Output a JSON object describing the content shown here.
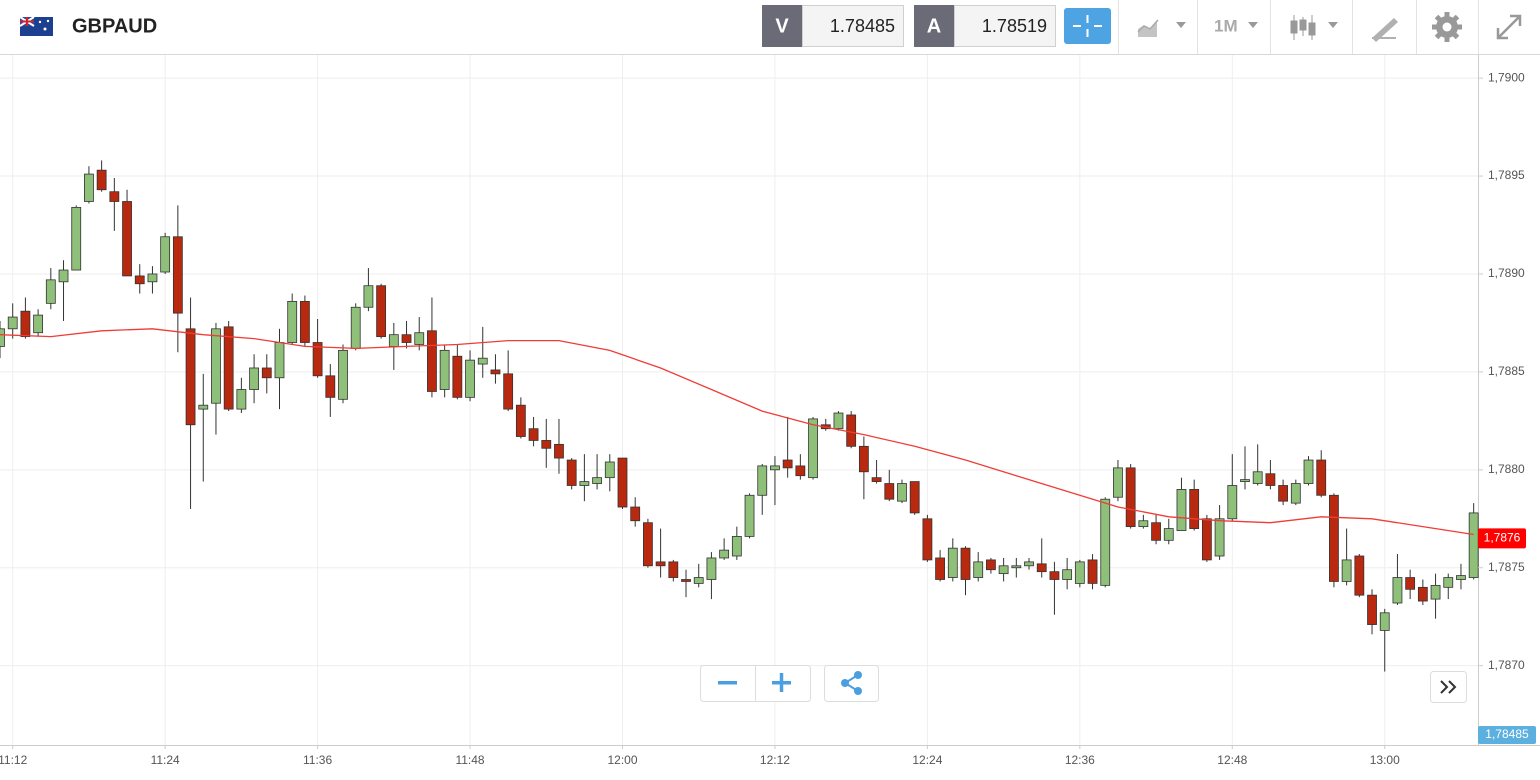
{
  "header": {
    "symbol": "GBPAUD",
    "sell_label": "V",
    "sell_price": "1.78485",
    "buy_label": "A",
    "buy_price": "1.78519",
    "timeframe": "1M"
  },
  "chart_data": {
    "type": "candlestick",
    "x": [
      "11:11",
      "11:12",
      "11:13",
      "11:14",
      "11:15",
      "11:16",
      "11:17",
      "11:18",
      "11:19",
      "11:20",
      "11:21",
      "11:22",
      "11:23",
      "11:24",
      "11:25",
      "11:26",
      "11:27",
      "11:28",
      "11:29",
      "11:30",
      "11:31",
      "11:32",
      "11:33",
      "11:34",
      "11:35",
      "11:36",
      "11:37",
      "11:38",
      "11:39",
      "11:40",
      "11:41",
      "11:42",
      "11:43",
      "11:44",
      "11:45",
      "11:46",
      "11:47",
      "11:48",
      "11:49",
      "11:50",
      "11:51",
      "11:52",
      "11:53",
      "11:54",
      "11:55",
      "11:56",
      "11:57",
      "11:58",
      "11:59",
      "12:00",
      "12:01",
      "12:02",
      "12:03",
      "12:04",
      "12:05",
      "12:06",
      "12:07",
      "12:08",
      "12:09",
      "12:10",
      "12:11",
      "12:12",
      "12:13",
      "12:14",
      "12:15",
      "12:16",
      "12:17",
      "12:18",
      "12:19",
      "12:20",
      "12:21",
      "12:22",
      "12:23",
      "12:24",
      "12:25",
      "12:26",
      "12:27",
      "12:28",
      "12:29",
      "12:30",
      "12:31",
      "12:32",
      "12:33",
      "12:34",
      "12:35",
      "12:36",
      "12:37",
      "12:38",
      "12:39",
      "12:40",
      "12:41",
      "12:42",
      "12:43",
      "12:44",
      "12:45",
      "12:46",
      "12:47",
      "12:48",
      "12:49",
      "12:50",
      "12:51",
      "12:52",
      "12:53",
      "12:54",
      "12:55",
      "12:56",
      "12:57",
      "12:58",
      "12:59",
      "13:00",
      "13:01",
      "13:02",
      "13:03",
      "13:04",
      "13:05",
      "13:06",
      "13:07"
    ],
    "open": [
      1.78863,
      1.78872,
      1.78881,
      1.7887,
      1.78885,
      1.78896,
      1.78902,
      1.78937,
      1.78953,
      1.78942,
      1.78937,
      1.78899,
      1.78896,
      1.78901,
      1.78919,
      1.78872,
      1.78831,
      1.78834,
      1.78873,
      1.78831,
      1.78841,
      1.78852,
      1.78847,
      1.78865,
      1.78886,
      1.78865,
      1.78848,
      1.78836,
      1.78862,
      1.78883,
      1.78894,
      1.78863,
      1.78869,
      1.78864,
      1.78871,
      1.78841,
      1.78858,
      1.78837,
      1.78854,
      1.78851,
      1.78849,
      1.78833,
      1.78821,
      1.78815,
      1.78813,
      1.78805,
      1.78792,
      1.78793,
      1.78796,
      1.78806,
      1.78781,
      1.78773,
      1.78753,
      1.78753,
      1.78744,
      1.78742,
      1.78744,
      1.78755,
      1.78756,
      1.78766,
      1.78787,
      1.788,
      1.78805,
      1.78802,
      1.78796,
      1.78823,
      1.78821,
      1.78828,
      1.78812,
      1.78796,
      1.78793,
      1.78784,
      1.78794,
      1.78775,
      1.78755,
      1.78745,
      1.7876,
      1.78745,
      1.78754,
      1.78747,
      1.7875,
      1.78751,
      1.78752,
      1.78748,
      1.78744,
      1.78742,
      1.78754,
      1.78741,
      1.78786,
      1.78801,
      1.78771,
      1.78773,
      1.78764,
      1.78769,
      1.7879,
      1.78775,
      1.78756,
      1.78775,
      1.78794,
      1.78793,
      1.78798,
      1.78792,
      1.78783,
      1.78793,
      1.78805,
      1.78787,
      1.78743,
      1.78756,
      1.78736,
      1.78718,
      1.78732,
      1.78745,
      1.7874,
      1.78734,
      1.7874,
      1.78744,
      1.78745
    ],
    "high": [
      1.78876,
      1.78885,
      1.78888,
      1.78882,
      1.78903,
      1.78907,
      1.78935,
      1.78955,
      1.78958,
      1.78949,
      1.78943,
      1.78905,
      1.78904,
      1.78921,
      1.78935,
      1.78888,
      1.78849,
      1.78875,
      1.78876,
      1.78847,
      1.78859,
      1.78859,
      1.78872,
      1.7889,
      1.78889,
      1.78877,
      1.78854,
      1.78864,
      1.78885,
      1.78903,
      1.78895,
      1.78875,
      1.78876,
      1.78878,
      1.78888,
      1.78864,
      1.78864,
      1.78861,
      1.78873,
      1.78859,
      1.78861,
      1.78837,
      1.78827,
      1.78826,
      1.78826,
      1.78806,
      1.78808,
      1.78808,
      1.78808,
      1.78806,
      1.78786,
      1.78775,
      1.7877,
      1.78754,
      1.78749,
      1.78752,
      1.78758,
      1.78765,
      1.78771,
      1.78788,
      1.78803,
      1.78807,
      1.78827,
      1.78808,
      1.78827,
      1.78826,
      1.7883,
      1.7883,
      1.78817,
      1.78805,
      1.788,
      1.78795,
      1.78794,
      1.78777,
      1.78759,
      1.78765,
      1.78761,
      1.78758,
      1.78755,
      1.78755,
      1.78755,
      1.78755,
      1.78765,
      1.78753,
      1.78755,
      1.78754,
      1.78757,
      1.78786,
      1.78805,
      1.78803,
      1.78777,
      1.78777,
      1.78775,
      1.78796,
      1.78795,
      1.78777,
      1.78782,
      1.78808,
      1.78812,
      1.78813,
      1.78805,
      1.78795,
      1.78795,
      1.78807,
      1.7881,
      1.78788,
      1.7877,
      1.78757,
      1.78739,
      1.78729,
      1.78757,
      1.78749,
      1.78744,
      1.78747,
      1.78747,
      1.78752,
      1.78783
    ],
    "low": [
      1.78857,
      1.78867,
      1.78867,
      1.78868,
      1.78882,
      1.78876,
      1.78902,
      1.78936,
      1.78942,
      1.78922,
      1.78899,
      1.7889,
      1.7889,
      1.789,
      1.7886,
      1.7878,
      1.78794,
      1.78818,
      1.7883,
      1.78829,
      1.78834,
      1.78839,
      1.78831,
      1.78864,
      1.78863,
      1.78847,
      1.78827,
      1.78834,
      1.78861,
      1.78881,
      1.78867,
      1.78851,
      1.78862,
      1.78861,
      1.78837,
      1.78837,
      1.78836,
      1.78835,
      1.78847,
      1.78844,
      1.7883,
      1.78816,
      1.78812,
      1.78801,
      1.78798,
      1.7879,
      1.78784,
      1.7879,
      1.78789,
      1.7878,
      1.78771,
      1.7875,
      1.78745,
      1.78743,
      1.78735,
      1.7874,
      1.78734,
      1.78754,
      1.78754,
      1.78765,
      1.78777,
      1.78782,
      1.78796,
      1.78795,
      1.78795,
      1.7882,
      1.7882,
      1.78811,
      1.78785,
      1.78793,
      1.78784,
      1.78783,
      1.78777,
      1.78753,
      1.78743,
      1.78743,
      1.78736,
      1.78743,
      1.78747,
      1.78743,
      1.78745,
      1.78749,
      1.78745,
      1.78726,
      1.78739,
      1.7874,
      1.78739,
      1.7874,
      1.78784,
      1.7877,
      1.7877,
      1.78762,
      1.78762,
      1.78769,
      1.78769,
      1.78753,
      1.78754,
      1.78774,
      1.7879,
      1.78792,
      1.7879,
      1.78782,
      1.78782,
      1.78792,
      1.78786,
      1.7874,
      1.78741,
      1.78735,
      1.78716,
      1.78697,
      1.78731,
      1.78734,
      1.78731,
      1.78724,
      1.78734,
      1.78739,
      1.78744
    ],
    "close": [
      1.78872,
      1.78878,
      1.78868,
      1.78879,
      1.78897,
      1.78902,
      1.78934,
      1.78951,
      1.78943,
      1.78937,
      1.78899,
      1.78895,
      1.789,
      1.78919,
      1.7888,
      1.78823,
      1.78833,
      1.78872,
      1.78831,
      1.78841,
      1.78852,
      1.78847,
      1.78865,
      1.78886,
      1.78865,
      1.78848,
      1.78837,
      1.78861,
      1.78883,
      1.78894,
      1.78868,
      1.78869,
      1.78865,
      1.7887,
      1.7884,
      1.78861,
      1.78837,
      1.78856,
      1.78857,
      1.78849,
      1.78831,
      1.78817,
      1.78815,
      1.78811,
      1.78806,
      1.78792,
      1.78794,
      1.78796,
      1.78804,
      1.78781,
      1.78774,
      1.78751,
      1.78751,
      1.78745,
      1.78743,
      1.78745,
      1.78755,
      1.78759,
      1.78766,
      1.78787,
      1.78802,
      1.78802,
      1.78801,
      1.78797,
      1.78826,
      1.78821,
      1.78829,
      1.78812,
      1.78799,
      1.78794,
      1.78785,
      1.78793,
      1.78778,
      1.78754,
      1.78744,
      1.7876,
      1.78744,
      1.78753,
      1.78749,
      1.78751,
      1.78751,
      1.78753,
      1.78748,
      1.78744,
      1.78749,
      1.78753,
      1.78742,
      1.78785,
      1.78801,
      1.78771,
      1.78774,
      1.78764,
      1.7877,
      1.7879,
      1.7877,
      1.78754,
      1.78775,
      1.78792,
      1.78795,
      1.78799,
      1.78792,
      1.78784,
      1.78793,
      1.78805,
      1.78787,
      1.78743,
      1.78754,
      1.78736,
      1.78721,
      1.78727,
      1.78745,
      1.78739,
      1.78733,
      1.78741,
      1.78745,
      1.78746,
      1.78778
    ],
    "up_color": "#8fc07a",
    "down_color": "#b8290f",
    "moving_average": {
      "color": "#f03c36",
      "x": [
        "11:11",
        "11:15",
        "11:19",
        "11:23",
        "11:27",
        "11:31",
        "11:35",
        "11:39",
        "11:43",
        "11:47",
        "11:51",
        "11:55",
        "11:59",
        "12:03",
        "12:07",
        "12:11",
        "12:15",
        "12:19",
        "12:23",
        "12:27",
        "12:31",
        "12:35",
        "12:39",
        "12:43",
        "12:47",
        "12:51",
        "12:55",
        "12:59",
        "13:03",
        "13:07"
      ],
      "values": [
        1.78869,
        1.78868,
        1.78871,
        1.78872,
        1.78869,
        1.78867,
        1.78863,
        1.78862,
        1.78863,
        1.78864,
        1.78866,
        1.78866,
        1.78861,
        1.78852,
        1.78841,
        1.7883,
        1.78823,
        1.78818,
        1.78812,
        1.78805,
        1.78797,
        1.78789,
        1.78781,
        1.78776,
        1.78774,
        1.78773,
        1.78776,
        1.78775,
        1.78771,
        1.78767
      ],
      "last_label": {
        "value": 1.78765,
        "label": "1,7876"
      }
    },
    "price_label": "1,78485",
    "ylim": [
      1.786595,
      1.790118
    ],
    "yticks": [
      {
        "value": 1.787,
        "label": "1,7870"
      },
      {
        "value": 1.7875,
        "label": "1,7875"
      },
      {
        "value": 1.788,
        "label": "1,7880"
      },
      {
        "value": 1.7885,
        "label": "1,7885"
      },
      {
        "value": 1.789,
        "label": "1,7890"
      },
      {
        "value": 1.7895,
        "label": "1,7895"
      },
      {
        "value": 1.79,
        "label": "1,7900"
      }
    ],
    "xticks": [
      "11:12",
      "11:24",
      "11:36",
      "11:48",
      "12:00",
      "12:12",
      "12:24",
      "12:36",
      "12:48",
      "13:00"
    ],
    "grid": true
  }
}
